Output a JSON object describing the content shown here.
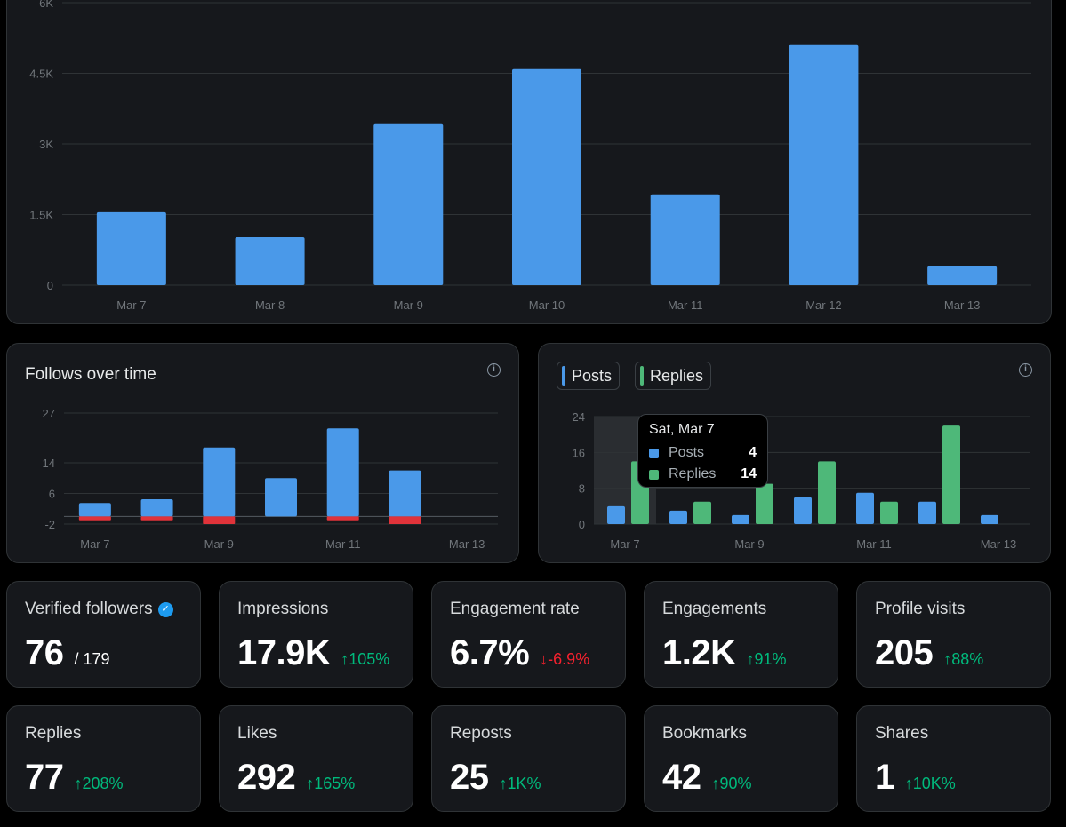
{
  "colors": {
    "blue": "#4a99e9",
    "green": "#4eb879",
    "red": "#e0333a",
    "grid": "#2f3336",
    "card": "#16181c"
  },
  "impressions_chart": {
    "chart_data": {
      "type": "bar",
      "categories": [
        "Mar 7",
        "Mar 8",
        "Mar 9",
        "Mar 10",
        "Mar 11",
        "Mar 12",
        "Mar 13"
      ],
      "values": [
        1550,
        1020,
        3420,
        4590,
        1930,
        5100,
        400
      ],
      "ylim": [
        0,
        6000
      ],
      "yticks": [
        "0",
        "1.5K",
        "3K",
        "4.5K",
        "6K"
      ],
      "ytick_values": [
        0,
        1500,
        3000,
        4500,
        6000
      ],
      "grid": true
    }
  },
  "follows_chart": {
    "title": "Follows over time",
    "chart_data": {
      "type": "bar",
      "categories": [
        "Mar 7",
        "Mar 8",
        "Mar 9",
        "Mar 10",
        "Mar 11",
        "Mar 12",
        "Mar 13"
      ],
      "xticks": [
        "Mar 7",
        "Mar 9",
        "Mar 11",
        "Mar 13"
      ],
      "series": [
        {
          "values": [
            3.5,
            4.5,
            18,
            10,
            23,
            12,
            0
          ]
        },
        {
          "values": [
            -1,
            -1,
            -2,
            0,
            -1,
            -2,
            0
          ]
        }
      ],
      "ylim": [
        -2,
        27
      ],
      "yticks": [
        "-2",
        "6",
        "14",
        "27"
      ],
      "ytick_values": [
        -2,
        6,
        14,
        27
      ],
      "grid": true
    }
  },
  "posts_chart": {
    "legend": [
      {
        "label": "Posts"
      },
      {
        "label": "Replies"
      }
    ],
    "tooltip": {
      "date": "Sat, Mar 7",
      "rows": [
        {
          "label": "Posts",
          "value": "4"
        },
        {
          "label": "Replies",
          "value": "14"
        }
      ]
    },
    "chart_data": {
      "type": "bar",
      "categories": [
        "Mar 7",
        "Mar 8",
        "Mar 9",
        "Mar 10",
        "Mar 11",
        "Mar 12",
        "Mar 13"
      ],
      "xticks": [
        "Mar 7",
        "Mar 9",
        "Mar 11",
        "Mar 13"
      ],
      "series": [
        {
          "name": "Posts",
          "values": [
            4,
            3,
            2,
            6,
            7,
            5,
            2
          ]
        },
        {
          "name": "Replies",
          "values": [
            14,
            5,
            9,
            14,
            5,
            22,
            0
          ]
        }
      ],
      "ylim": [
        0,
        24
      ],
      "yticks": [
        "0",
        "8",
        "16",
        "24"
      ],
      "ytick_values": [
        0,
        8,
        16,
        24
      ],
      "grid": true
    }
  },
  "stats": [
    {
      "label": "Verified followers",
      "value": "76",
      "total": "/ 179",
      "verified": true
    },
    {
      "label": "Impressions",
      "value": "17.9K",
      "change": "↑105%",
      "direction": "up"
    },
    {
      "label": "Engagement rate",
      "value": "6.7%",
      "change": "↓-6.9%",
      "direction": "down"
    },
    {
      "label": "Engagements",
      "value": "1.2K",
      "change": "↑91%",
      "direction": "up"
    },
    {
      "label": "Profile visits",
      "value": "205",
      "change": "↑88%",
      "direction": "up"
    },
    {
      "label": "Replies",
      "value": "77",
      "change": "↑208%",
      "direction": "up"
    },
    {
      "label": "Likes",
      "value": "292",
      "change": "↑165%",
      "direction": "up"
    },
    {
      "label": "Reposts",
      "value": "25",
      "change": "↑1K%",
      "direction": "up"
    },
    {
      "label": "Bookmarks",
      "value": "42",
      "change": "↑90%",
      "direction": "up"
    },
    {
      "label": "Shares",
      "value": "1",
      "change": "↑10K%",
      "direction": "up"
    }
  ]
}
